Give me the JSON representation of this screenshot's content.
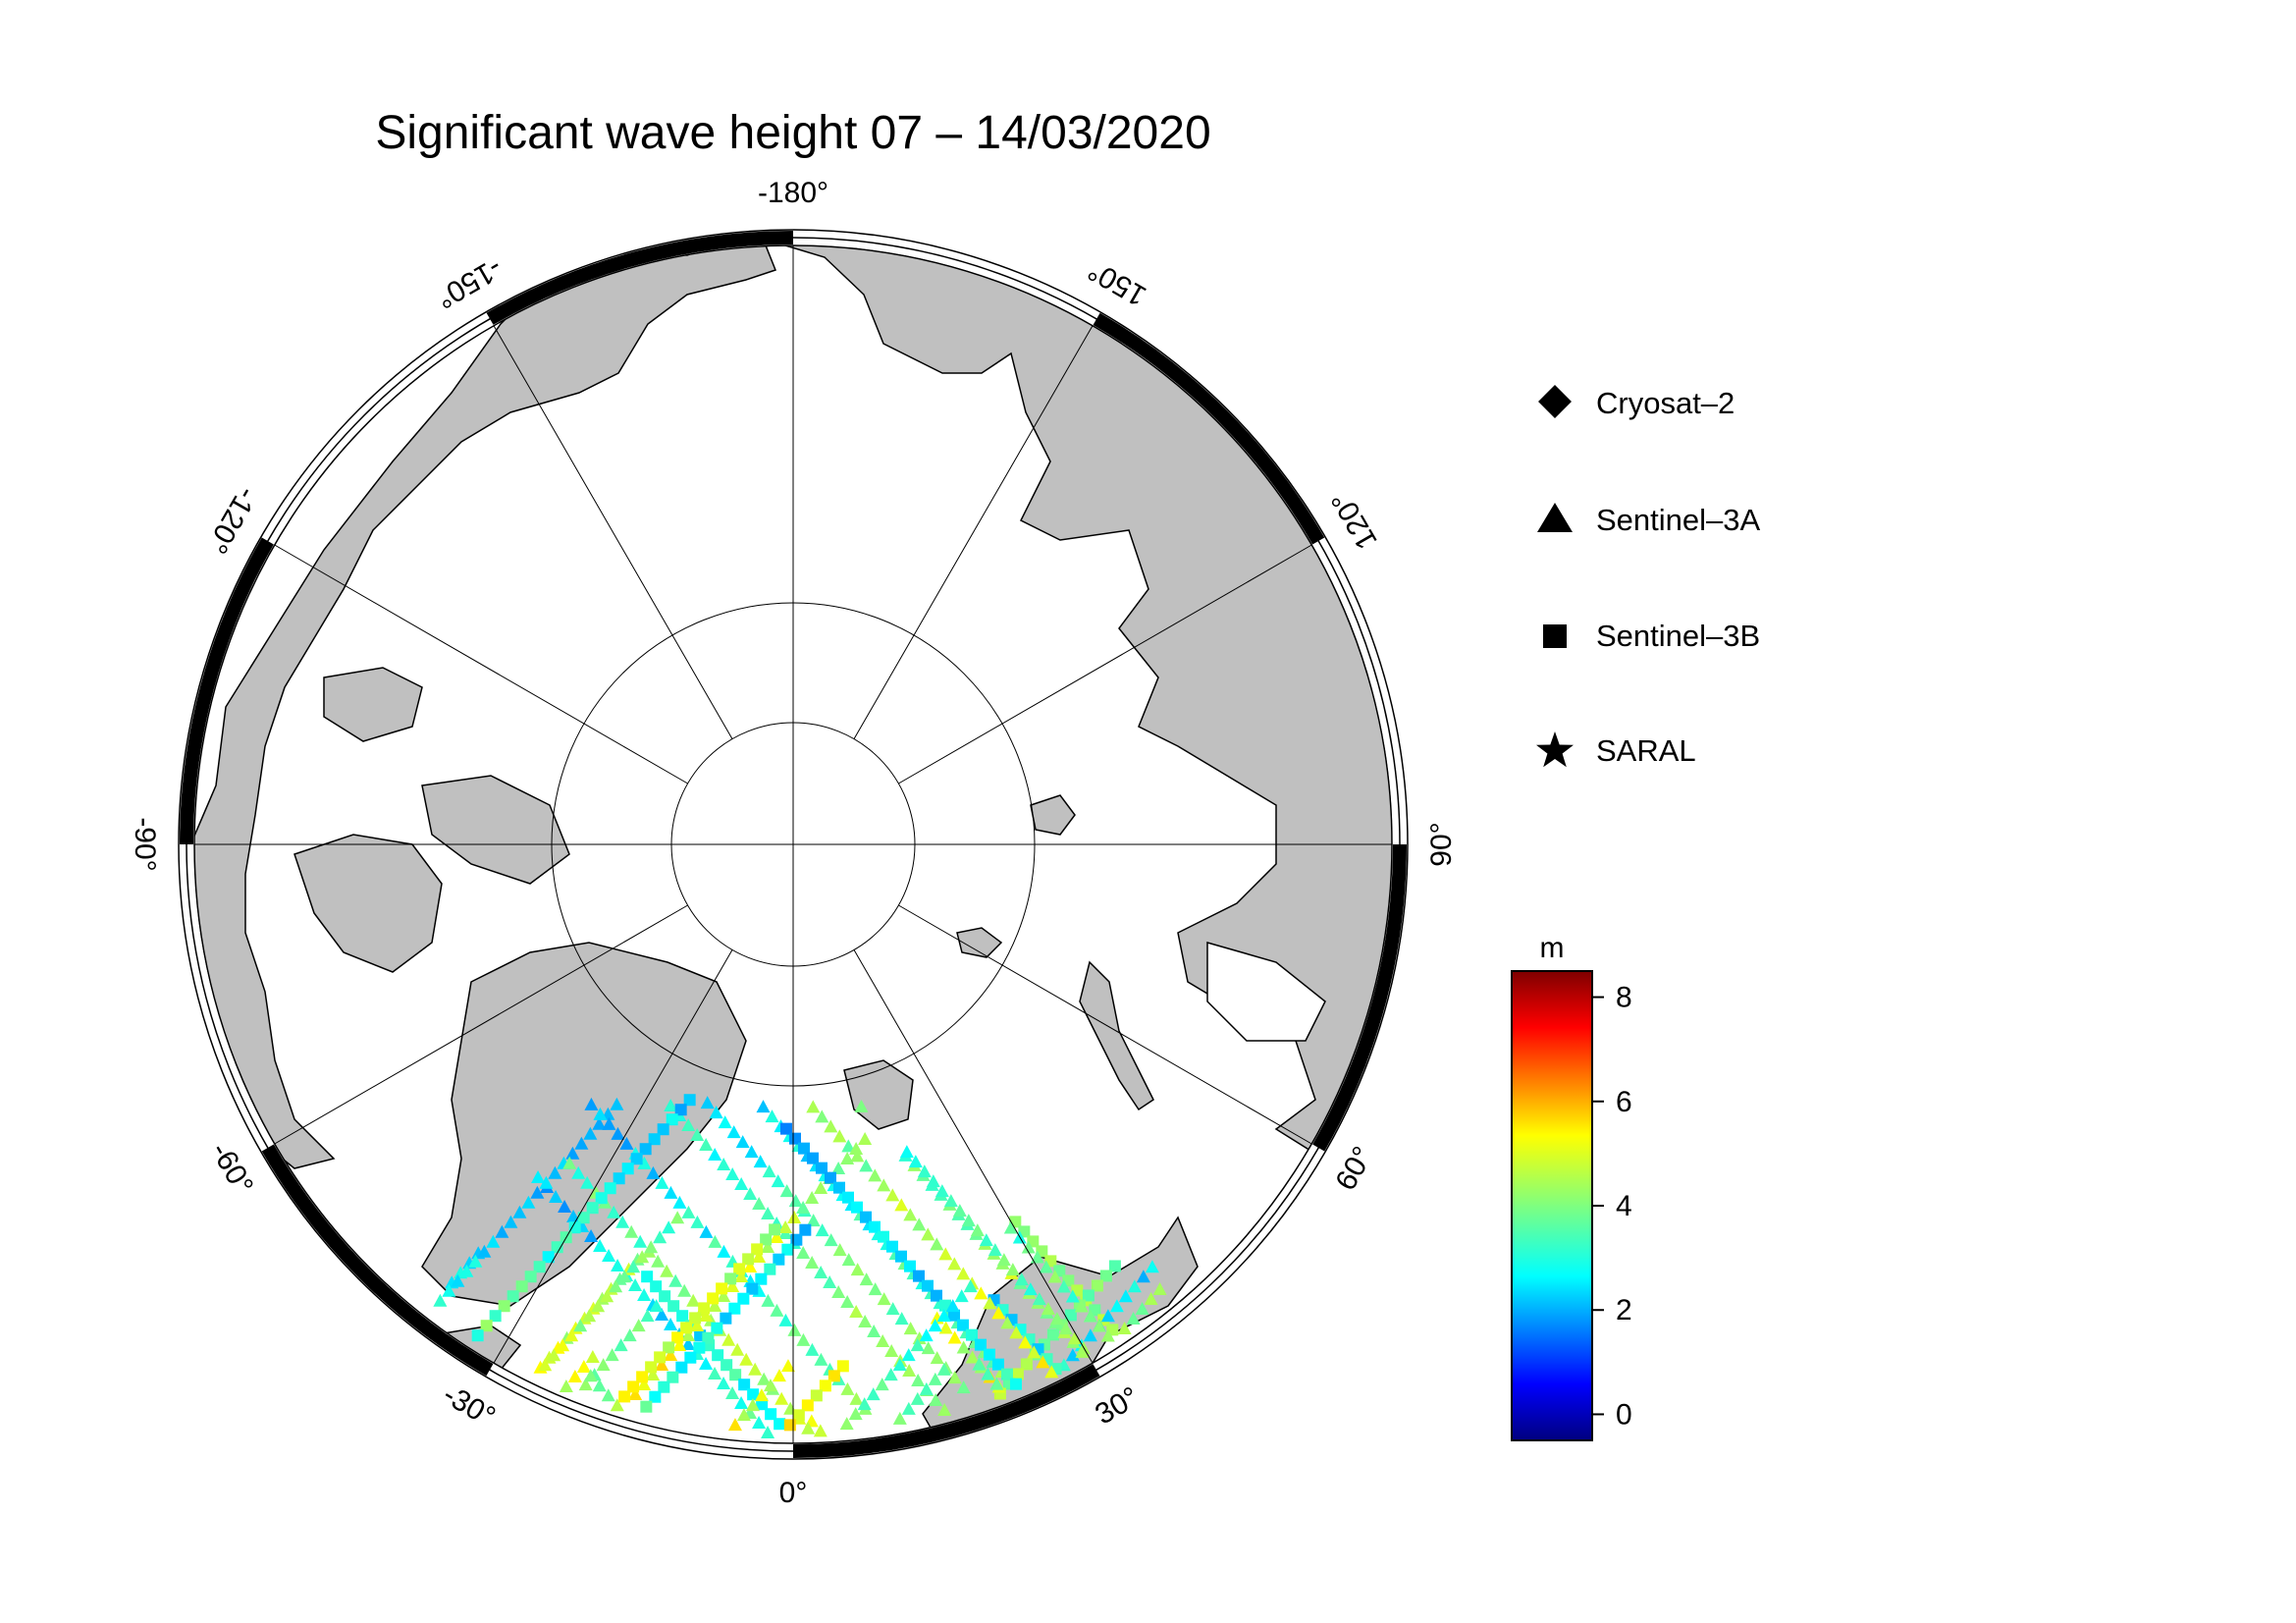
{
  "title": "Significant wave height 07 – 14/03/2020",
  "map": {
    "projection": "north polar stereographic",
    "center_lon_at_bottom": 0,
    "lon_labels": [
      "-180°",
      "150°",
      "120°",
      "90°",
      "60°",
      "30°",
      "0°",
      "-30°",
      "-60°",
      "-90°",
      "-120°",
      "-150°"
    ],
    "lon_values": [
      180,
      150,
      120,
      90,
      60,
      30,
      0,
      -30,
      -60,
      -90,
      -120,
      -150
    ],
    "colors": {
      "land": "#c0c0c0",
      "ocean_ice": "#ffffff",
      "coast": "#000000",
      "frame_black": "#000000",
      "frame_white": "#ffffff"
    }
  },
  "legend": [
    {
      "label": "Cryosat–2",
      "icon": "diamond-icon"
    },
    {
      "label": "Sentinel–3A",
      "icon": "triangle-icon"
    },
    {
      "label": "Sentinel–3B",
      "icon": "square-icon"
    },
    {
      "label": "SARAL",
      "icon": "star-icon"
    }
  ],
  "colorbar": {
    "unit": "m",
    "ticks": [
      "8",
      "6",
      "4",
      "2",
      "0"
    ],
    "tick_values": [
      8,
      6,
      4,
      2,
      0
    ],
    "range": [
      -0.5,
      8.5
    ],
    "colormap": "jet"
  }
}
